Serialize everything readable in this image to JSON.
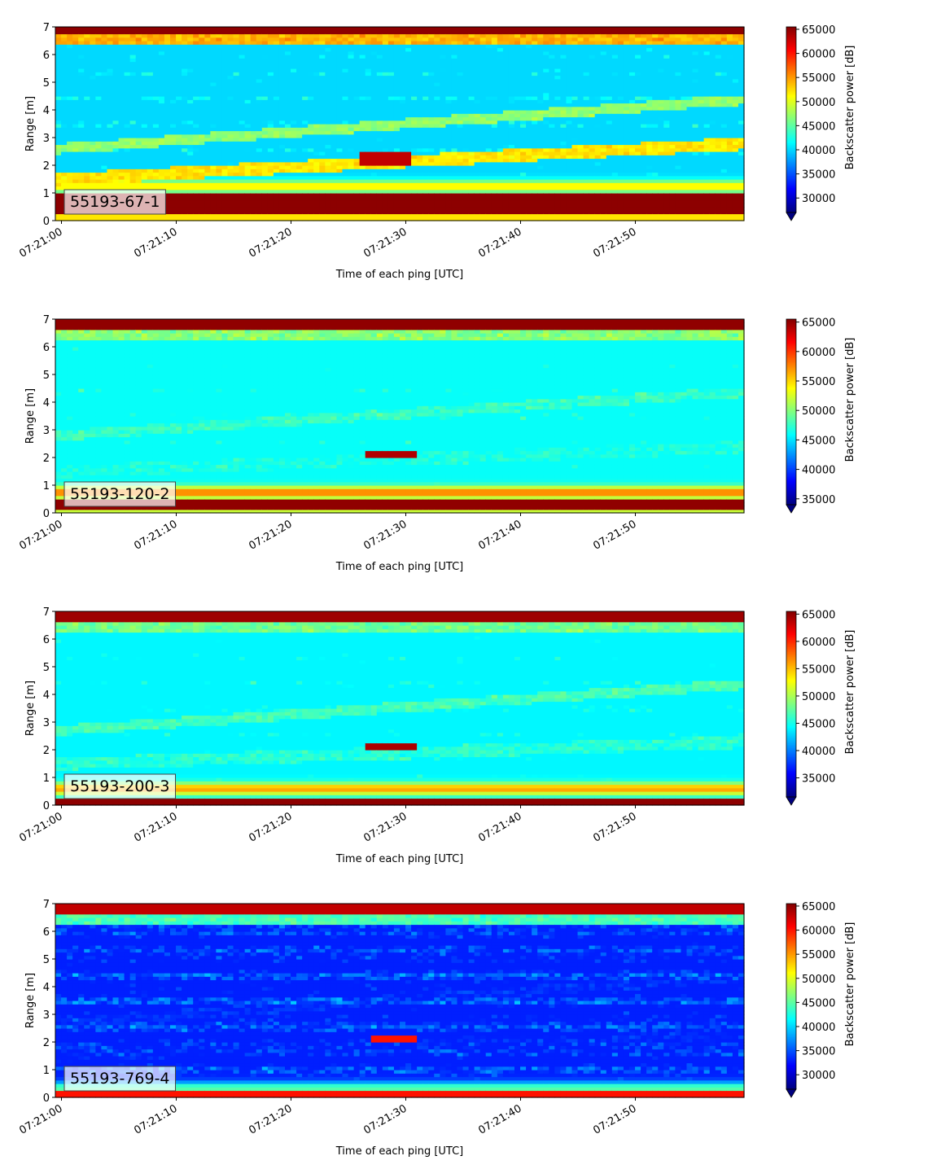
{
  "chart_data": [
    {
      "type": "heatmap",
      "label": "55193-67-1",
      "xlabel": "Time of each ping [UTC]",
      "ylabel": "Range [m]",
      "xticks": [
        "07:21:00",
        "07:21:10",
        "07:21:20",
        "07:21:30",
        "07:21:40",
        "07:21:50"
      ],
      "xlim_seconds": [
        0,
        59.5
      ],
      "ylim": [
        0,
        7
      ],
      "yticks": [
        0,
        1,
        2,
        3,
        4,
        5,
        6,
        7
      ],
      "colorbar_label": "Backscatter power [dB]",
      "colorbar_ticks": [
        30000,
        35000,
        40000,
        45000,
        50000,
        55000,
        60000,
        65000
      ],
      "clim": [
        27000,
        65500
      ],
      "colormap": "jet",
      "profile": {
        "noise_floor": 36000,
        "bottom_strong_above": 0.2,
        "bottom_strong_below": 1.05,
        "bottom_strong_value": 65000,
        "near_band_center": 1.25,
        "near_band_value": 52000,
        "surface_center": 6.55,
        "surface_value": 54000,
        "top_strong_above": 6.7,
        "top_strong_value": 65000,
        "slant_1": {
          "start": 1.5,
          "end": 2.8,
          "value": 52000
        },
        "slant_2": {
          "start": 2.6,
          "end": 4.4,
          "value": 47000
        },
        "fish": {
          "t_start": 26.5,
          "t_end": 30.5,
          "range_low": 2.0,
          "range_high": 2.55,
          "value": 63000
        }
      }
    },
    {
      "type": "heatmap",
      "label": "55193-120-2",
      "xlabel": "Time of each ping [UTC]",
      "ylabel": "Range [m]",
      "xticks": [
        "07:21:00",
        "07:21:10",
        "07:21:20",
        "07:21:30",
        "07:21:40",
        "07:21:50"
      ],
      "xlim_seconds": [
        0,
        59.5
      ],
      "ylim": [
        0,
        7
      ],
      "yticks": [
        0,
        1,
        2,
        3,
        4,
        5,
        6,
        7
      ],
      "colorbar_label": "Backscatter power [dB]",
      "colorbar_ticks": [
        35000,
        40000,
        45000,
        50000,
        55000,
        60000,
        65000
      ],
      "clim": [
        34000,
        65500
      ],
      "colormap": "jet",
      "profile": {
        "noise_floor": 40500,
        "bottom_strong_above": 0.1,
        "bottom_strong_below": 0.45,
        "bottom_strong_value": 65000,
        "near_band_center": 0.75,
        "near_band_value": 58000,
        "surface_center": 6.4,
        "surface_value": 50000,
        "top_strong_above": 6.65,
        "top_strong_value": 65000,
        "slant_1": {
          "start": 1.5,
          "end": 2.4,
          "value": 46500
        },
        "slant_2": {
          "start": 2.8,
          "end": 4.4,
          "value": 47500
        },
        "fish": {
          "t_start": 27.0,
          "t_end": 31.0,
          "range_low": 1.95,
          "range_high": 2.3,
          "value": 64000
        }
      }
    },
    {
      "type": "heatmap",
      "label": "55193-200-3",
      "xlabel": "Time of each ping [UTC]",
      "ylabel": "Range [m]",
      "xticks": [
        "07:21:00",
        "07:21:10",
        "07:21:20",
        "07:21:30",
        "07:21:40",
        "07:21:50"
      ],
      "xlim_seconds": [
        0,
        59.5
      ],
      "ylim": [
        0,
        7
      ],
      "yticks": [
        0,
        1,
        2,
        3,
        4,
        5,
        6,
        7
      ],
      "colorbar_label": "Backscatter power [dB]",
      "colorbar_ticks": [
        35000,
        40000,
        45000,
        50000,
        55000,
        60000,
        65000
      ],
      "clim": [
        31500,
        65500
      ],
      "colormap": "jet",
      "profile": {
        "noise_floor": 39000,
        "bottom_strong_above": 0.05,
        "bottom_strong_below": 0.3,
        "bottom_strong_value": 65000,
        "near_band_center": 0.6,
        "near_band_value": 56000,
        "surface_center": 6.45,
        "surface_value": 48000,
        "top_strong_above": 6.65,
        "top_strong_value": 64500,
        "slant_1": {
          "start": 1.5,
          "end": 2.3,
          "value": 45500
        },
        "slant_2": {
          "start": 2.7,
          "end": 4.4,
          "value": 46500
        },
        "fish": {
          "t_start": 27.0,
          "t_end": 31.0,
          "range_low": 1.95,
          "range_high": 2.3,
          "value": 64000
        }
      }
    },
    {
      "type": "heatmap",
      "label": "55193-769-4",
      "xlabel": "Time of each ping [UTC]",
      "ylabel": "Range [m]",
      "xticks": [
        "07:21:00",
        "07:21:10",
        "07:21:20",
        "07:21:30",
        "07:21:40",
        "07:21:50"
      ],
      "xlim_seconds": [
        0,
        59.5
      ],
      "ylim": [
        0,
        7
      ],
      "yticks": [
        0,
        1,
        2,
        3,
        4,
        5,
        6,
        7
      ],
      "colorbar_label": "Backscatter power [dB]",
      "colorbar_ticks": [
        30000,
        35000,
        40000,
        45000,
        50000,
        55000,
        60000,
        65000
      ],
      "clim": [
        27000,
        65500
      ],
      "colormap": "jet",
      "profile": {
        "noise_floor": 31500,
        "bottom_strong_above": 0.05,
        "bottom_strong_below": 0.2,
        "bottom_strong_value": 60000,
        "near_band_center": 0.35,
        "near_band_value": 45000,
        "surface_center": 6.5,
        "surface_value": 44000,
        "top_strong_above": 6.6,
        "top_strong_value": 63000,
        "slant_1": {
          "start": 1.5,
          "end": 2.3,
          "value": 33000
        },
        "slant_2": {
          "start": 2.7,
          "end": 4.4,
          "value": 33500
        },
        "fish": {
          "t_start": 27.5,
          "t_end": 31.0,
          "range_low": 1.95,
          "range_high": 2.2,
          "value": 60000
        }
      }
    }
  ]
}
